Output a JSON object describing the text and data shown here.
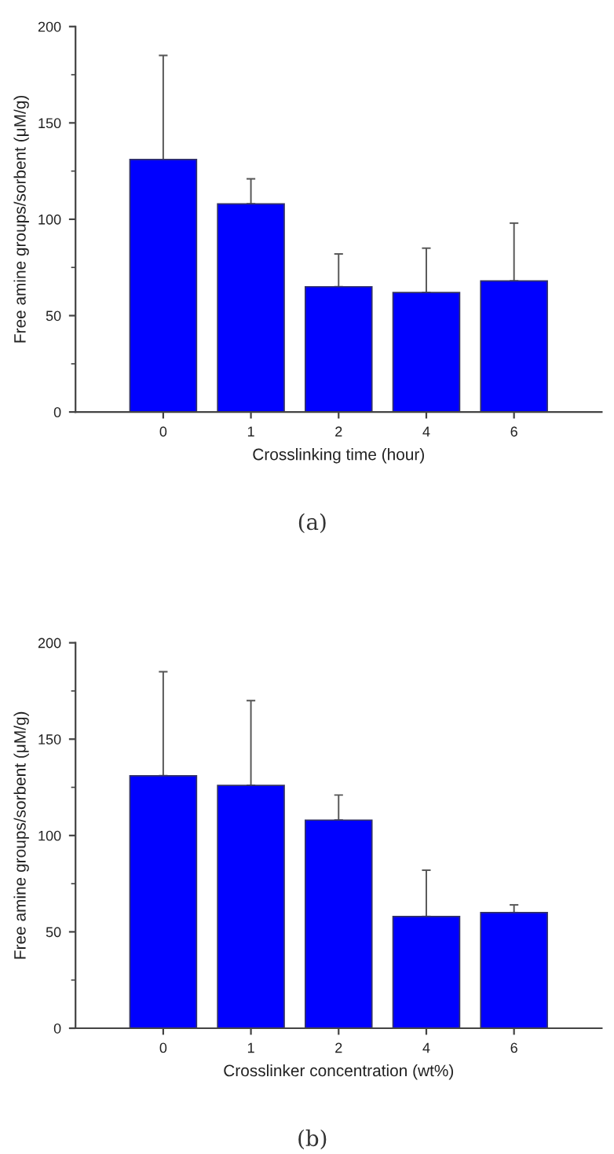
{
  "chart_data": [
    {
      "type": "bar",
      "xlabel": "Crosslinking time (hour)",
      "ylabel": "Free amine groups/sorbent (μM/g)",
      "categories": [
        "0",
        "1",
        "2",
        "4",
        "6"
      ],
      "values": [
        131,
        108,
        65,
        62,
        68
      ],
      "color": "#0000ff",
      "errors": [
        [
          131,
          185
        ],
        [
          108,
          121
        ],
        [
          65,
          82
        ],
        [
          62,
          85
        ],
        [
          68,
          98
        ]
      ],
      "ylim": [
        0,
        200
      ],
      "yticks": [
        0,
        50,
        100,
        150,
        200
      ],
      "grid": false,
      "annotations": [
        "(a)"
      ]
    },
    {
      "type": "bar",
      "xlabel": "Crosslinker concentration (wt%)",
      "ylabel": "Free amine groups/sorbent (μM/g)",
      "categories": [
        "0",
        "1",
        "2",
        "4",
        "6"
      ],
      "values": [
        131,
        126,
        108,
        58,
        60
      ],
      "color": "#0000ff",
      "errors": [
        [
          131,
          185
        ],
        [
          126,
          170
        ],
        [
          108,
          121
        ],
        [
          58,
          82
        ],
        [
          60,
          64
        ]
      ],
      "ylim": [
        0,
        200
      ],
      "yticks": [
        0,
        50,
        100,
        150,
        200
      ],
      "grid": false,
      "annotations": [
        "(b)"
      ]
    }
  ]
}
